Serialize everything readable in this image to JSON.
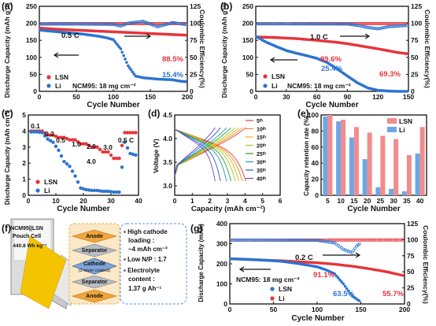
{
  "colors": {
    "red": "#e8333a",
    "blue": "#2b74d0",
    "pink": "#f28b8d",
    "lightblue": "#6fa6e6",
    "navy": "#1f3a93",
    "axis": "#111111"
  },
  "panel_labels": {
    "a": "(a)",
    "b": "(b)",
    "c": "(c)",
    "d": "(d)",
    "e": "(e)",
    "f": "(f)",
    "g": "(g)"
  },
  "chart_data": [
    {
      "id": "a",
      "type": "scatter",
      "xlabel": "Cycle Number",
      "ylabel": "Discharge Capacity (mAh g⁻¹)",
      "y2label": "Coulombic Efficiency(%)",
      "xlim": [
        0,
        200
      ],
      "ylim": [
        0,
        250
      ],
      "y2lim": [
        0,
        125
      ],
      "xticks": [
        0,
        50,
        100,
        150,
        200
      ],
      "yticks": [
        0,
        50,
        100,
        150,
        200,
        250
      ],
      "y2ticks": [
        0,
        25,
        50,
        75,
        100,
        125
      ],
      "series": [
        {
          "name": "LSN",
          "x": [
            1,
            20,
            40,
            60,
            80,
            100,
            120,
            140,
            160,
            180,
            200
          ],
          "y": [
            186,
            183,
            181,
            179,
            177,
            175,
            173,
            171,
            169,
            167,
            165
          ]
        },
        {
          "name": "Li",
          "x": [
            1,
            10,
            20,
            30,
            40,
            50,
            60,
            70,
            80,
            90,
            100,
            110,
            120,
            130,
            140,
            150,
            160,
            170,
            180,
            190,
            200
          ],
          "y": [
            180,
            178,
            176,
            174,
            172,
            170,
            168,
            165,
            162,
            158,
            152,
            125,
            75,
            45,
            40,
            38,
            36,
            35,
            34,
            30,
            28
          ]
        },
        {
          "name": "LSN CE",
          "x": [
            1,
            50,
            100,
            150,
            200
          ],
          "y2": [
            99.5,
            99.6,
            99.6,
            99.6,
            99.7
          ]
        },
        {
          "name": "Li CE",
          "x": [
            1,
            50,
            100,
            110,
            120,
            140,
            160,
            180,
            200
          ],
          "y2": [
            99,
            99,
            98.5,
            96,
            100,
            103,
            95,
            101,
            98
          ]
        }
      ],
      "annotations": {
        "rate": "0.5 C",
        "lsn_ret": "88.5%",
        "li_ret": "15.4%",
        "legend_lsn": "LSN",
        "legend_li": "Li",
        "loading": "NCM95: 18 mg cm⁻²"
      }
    },
    {
      "id": "b",
      "type": "scatter",
      "xlabel": "Cycle Number",
      "ylabel": "Discharge Capacity (mAh g⁻¹)",
      "y2label": "Coulombic Efficiency(%)",
      "xlim": [
        0,
        150
      ],
      "ylim": [
        0,
        250
      ],
      "y2lim": [
        0,
        125
      ],
      "xticks": [
        0,
        30,
        60,
        90,
        120,
        150
      ],
      "yticks": [
        0,
        50,
        100,
        150,
        200,
        250
      ],
      "y2ticks": [
        0,
        25,
        50,
        75,
        100,
        125
      ],
      "series": [
        {
          "name": "LSN",
          "x": [
            1,
            20,
            40,
            60,
            80,
            90,
            100,
            120,
            140,
            150
          ],
          "y": [
            160,
            158,
            155,
            150,
            144,
            140,
            135,
            125,
            114,
            110
          ]
        },
        {
          "name": "Li",
          "x": [
            1,
            10,
            20,
            30,
            40,
            50,
            60,
            70,
            80,
            90,
            100,
            110,
            120,
            130,
            140,
            150
          ],
          "y": [
            160,
            145,
            132,
            120,
            112,
            105,
            97,
            85,
            66,
            45,
            25,
            10,
            3,
            1,
            0,
            0
          ]
        },
        {
          "name": "LSN CE",
          "x": [
            1,
            150
          ],
          "y2": [
            99.5,
            99.6
          ]
        },
        {
          "name": "Li CE",
          "x": [
            1,
            90,
            100,
            110,
            120,
            130,
            140,
            150
          ],
          "y2": [
            99.3,
            99,
            97,
            94,
            92,
            95,
            96,
            97
          ]
        }
      ],
      "annotations": {
        "rate": "1.0 C",
        "lsn_ret": "89.6%",
        "li_ret": "25.4%",
        "lsn_ret2": "69.3%",
        "legend_lsn": "LSN",
        "legend_li": "Li",
        "loading": "NCM95: 18 mg cm⁻²"
      }
    },
    {
      "id": "c",
      "type": "scatter",
      "xlabel": "Cycle Number",
      "ylabel": "Discharge Capacity (mAh cm⁻²)",
      "xlim": [
        0,
        40
      ],
      "ylim": [
        0,
        5
      ],
      "xticks": [
        0,
        10,
        20,
        30,
        40
      ],
      "yticks": [
        0,
        1,
        2,
        3,
        4,
        5
      ],
      "series": [
        {
          "name": "LSN",
          "x": [
            1,
            3,
            5,
            7,
            9,
            11,
            13,
            15,
            17,
            19,
            21,
            23,
            25,
            27,
            29,
            31,
            33,
            35,
            37,
            39
          ],
          "y": [
            4.0,
            4.0,
            4.0,
            3.75,
            3.75,
            3.6,
            3.6,
            3.45,
            3.45,
            3.2,
            3.2,
            3.0,
            3.0,
            2.7,
            2.7,
            2.3,
            2.3,
            3.9,
            3.9,
            3.9
          ]
        },
        {
          "name": "Li",
          "x": [
            1,
            3,
            5,
            7,
            9,
            11,
            13,
            15,
            17,
            19,
            21,
            23,
            25,
            27,
            29,
            31,
            33,
            35,
            37,
            39
          ],
          "y": [
            3.95,
            3.95,
            3.9,
            3.5,
            3.3,
            2.8,
            2.1,
            1.8,
            1.2,
            0.45,
            0.35,
            0.3,
            0.3,
            0.25,
            0.25,
            0.2,
            0.2,
            3.3,
            2.6,
            2.5
          ]
        }
      ],
      "rate_labels": [
        "0.1",
        "0.2",
        "0.5",
        "1.0",
        "2.0",
        "3.0",
        "4.0",
        "0.5 C"
      ],
      "legend": [
        "LSN",
        "Li"
      ]
    },
    {
      "id": "d",
      "type": "line",
      "xlabel": "Capacity (mAh cm⁻²)",
      "ylabel": "Voltage (V)",
      "xlim": [
        0,
        6
      ],
      "ylim": [
        2.8,
        4.5
      ],
      "xticks": [
        0,
        1,
        2,
        3,
        4,
        5,
        6
      ],
      "yticks": [
        3.0,
        3.5,
        4.0,
        4.5
      ],
      "legend": [
        "5ᵗʰ",
        "10ᵗʰ",
        "15ᵗʰ",
        "20ᵗʰ",
        "25ᵗʰ",
        "30ᵗʰ",
        "35ᵗʰ",
        "40ᵗʰ"
      ],
      "series_colors": [
        "#e23c3c",
        "#f28c28",
        "#e6b800",
        "#9acd32",
        "#2ca02c",
        "#1f9e9e",
        "#1f5fd6",
        "#7a3fc4"
      ],
      "end_capacities": [
        4.05,
        3.85,
        3.65,
        3.45,
        3.2,
        2.95,
        2.6,
        2.3
      ]
    },
    {
      "id": "e",
      "type": "bar",
      "xlabel": "Cycle Number",
      "ylabel": "Capacity retention rate (%)",
      "categories": [
        "5",
        "10",
        "15",
        "20",
        "25",
        "30",
        "35",
        "40"
      ],
      "ylim": [
        0,
        100
      ],
      "yticks": [
        0,
        20,
        40,
        60,
        80,
        100
      ],
      "series": [
        {
          "name": "LSN",
          "values": [
            100,
            94,
            85,
            78,
            74,
            70,
            50,
            85
          ]
        },
        {
          "name": "Li",
          "values": [
            98,
            92,
            72,
            45,
            10,
            8,
            5,
            52
          ]
        }
      ]
    },
    {
      "id": "g",
      "type": "scatter",
      "xlabel": "Cycle Number",
      "ylabel": "Discharge Capacity (mAh)",
      "y2label": "Coulombic Efficiency(%)",
      "xlim": [
        0,
        200
      ],
      "ylim": [
        0,
        400
      ],
      "y2lim": [
        0,
        125
      ],
      "xticks": [
        0,
        50,
        100,
        150,
        200
      ],
      "yticks": [
        0,
        100,
        200,
        300,
        400
      ],
      "y2ticks": [
        0,
        25,
        50,
        75,
        100,
        125
      ],
      "series": [
        {
          "name": "LSN",
          "x": [
            1,
            20,
            40,
            60,
            80,
            100,
            120,
            140,
            160,
            180,
            200
          ],
          "y": [
            225,
            222,
            218,
            215,
            210,
            205,
            198,
            188,
            175,
            160,
            140
          ]
        },
        {
          "name": "Li",
          "x": [
            1,
            20,
            40,
            60,
            80,
            100,
            110,
            120,
            130,
            140,
            150
          ],
          "y": [
            225,
            222,
            218,
            212,
            200,
            185,
            170,
            150,
            100,
            40,
            10
          ]
        },
        {
          "name": "LSN CE",
          "x": [
            1,
            200
          ],
          "y2": [
            99.5,
            99.6
          ]
        },
        {
          "name": "Li CE",
          "x": [
            1,
            100,
            120,
            130,
            140,
            145,
            150
          ],
          "y2": [
            99.5,
            99.2,
            95,
            85,
            80,
            90,
            95
          ]
        }
      ],
      "annotations": {
        "rate": "0.2 C",
        "lsn_ret": "91.1%",
        "li_ret": "63.5%",
        "lsn_ret2": "55.7%",
        "loading": "NCM95: 18 mg cm⁻²",
        "legend_lsn": "LSN",
        "legend_li": "Li"
      }
    }
  ],
  "panel_f": {
    "pouch": {
      "line1": "NCM95||LSN",
      "line2": "Pouch Cell",
      "line3": "440.8 Wh kg⁻¹"
    },
    "stack": {
      "anode_top": "Anode",
      "separator_top": "Separator",
      "cathode": "Cathode",
      "cathode_sub": "(2-layer coated)",
      "separator_bot": "Separator",
      "anode_bot": "Anode"
    },
    "bullets": {
      "b1a": "High cathode",
      "b1b": "loading :",
      "b1c": "~4 mAh cm⁻²",
      "b2": "Low N/P : 1.7",
      "b3a": "Electrolyte",
      "b3b": "content :",
      "b3c": "1.37 g Ah⁻¹"
    }
  }
}
